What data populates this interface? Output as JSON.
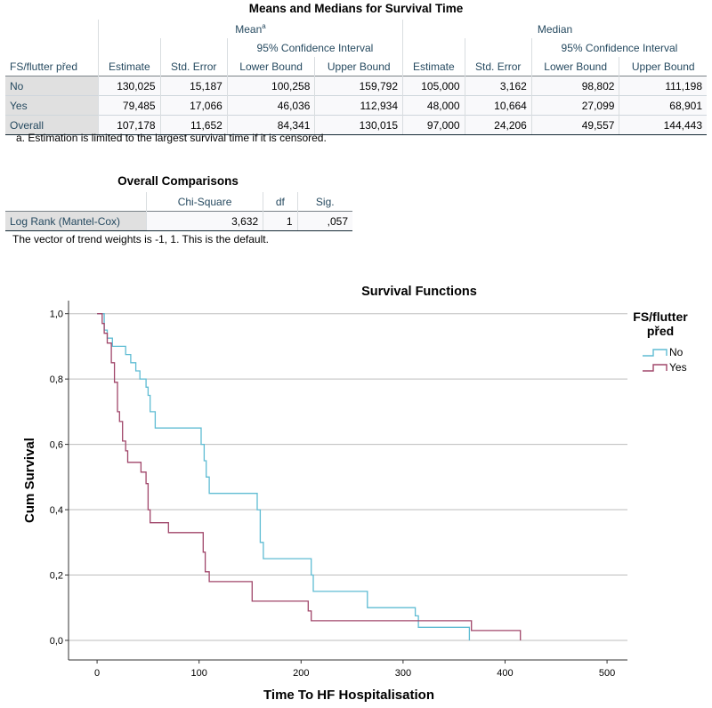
{
  "means_table": {
    "title": "Means and Medians for Survival Time",
    "mean_group": "Mean",
    "mean_sup": "a",
    "median_group": "Median",
    "ci_group": "95% Confidence Interval",
    "row_header": "FS/flutter před",
    "columns": [
      "Estimate",
      "Std. Error",
      "Lower Bound",
      "Upper Bound",
      "Estimate",
      "Std. Error",
      "Lower Bound",
      "Upper Bound"
    ],
    "rows": [
      {
        "label": "No",
        "values": [
          "130,025",
          "15,187",
          "100,258",
          "159,792",
          "105,000",
          "3,162",
          "98,802",
          "111,198"
        ]
      },
      {
        "label": "Yes",
        "values": [
          "79,485",
          "17,066",
          "46,036",
          "112,934",
          "48,000",
          "10,664",
          "27,099",
          "68,901"
        ]
      },
      {
        "label": "Overall",
        "values": [
          "107,178",
          "11,652",
          "84,341",
          "130,015",
          "97,000",
          "24,206",
          "49,557",
          "144,443"
        ]
      }
    ],
    "footnote": "a. Estimation is limited to the largest survival time if it is censored."
  },
  "comparisons_table": {
    "title": "Overall Comparisons",
    "columns": [
      "Chi-Square",
      "df",
      "Sig."
    ],
    "rows": [
      {
        "label": "Log Rank (Mantel-Cox)",
        "values": [
          "3,632",
          "1",
          ",057"
        ]
      }
    ],
    "footnote": "The vector of trend weights is -1, 1. This is the default."
  },
  "chart_data": {
    "type": "line",
    "step": true,
    "title": "Survival Functions",
    "xlabel": "Time To HF Hospitalisation",
    "ylabel": "Cum Survival",
    "xlim": [
      -28,
      520
    ],
    "ylim": [
      -0.06,
      1.04
    ],
    "x_ticks": [
      0,
      100,
      200,
      300,
      400,
      500
    ],
    "y_ticks": [
      0.0,
      0.2,
      0.4,
      0.6,
      0.8,
      1.0
    ],
    "x_tick_labels": [
      "0",
      "100",
      "200",
      "300",
      "400",
      "500"
    ],
    "y_tick_labels": [
      "0,0",
      "0,2",
      "0,4",
      "0,6",
      "0,8",
      "1,0"
    ],
    "grid": "horizontal",
    "legend": {
      "title_line1": "FS/flutter",
      "title_line2": "před",
      "placement": "right"
    },
    "series": [
      {
        "name": "No",
        "color": "#5fbcd3",
        "points": [
          [
            0,
            1.0
          ],
          [
            5,
            1.0
          ],
          [
            7,
            0.95
          ],
          [
            10,
            0.925
          ],
          [
            15,
            0.9
          ],
          [
            28,
            0.875
          ],
          [
            33,
            0.85
          ],
          [
            38,
            0.825
          ],
          [
            42,
            0.8
          ],
          [
            48,
            0.775
          ],
          [
            50,
            0.75
          ],
          [
            52,
            0.7
          ],
          [
            57,
            0.65
          ],
          [
            97,
            0.65
          ],
          [
            102,
            0.6
          ],
          [
            105,
            0.55
          ],
          [
            107,
            0.5
          ],
          [
            110,
            0.45
          ],
          [
            155,
            0.45
          ],
          [
            157,
            0.4
          ],
          [
            160,
            0.3
          ],
          [
            163,
            0.25
          ],
          [
            207,
            0.25
          ],
          [
            210,
            0.2
          ],
          [
            212,
            0.15
          ],
          [
            262,
            0.15
          ],
          [
            265,
            0.1
          ],
          [
            310,
            0.1
          ],
          [
            312,
            0.075
          ],
          [
            315,
            0.04
          ],
          [
            365,
            0.04
          ],
          [
            365,
            0.0
          ]
        ]
      },
      {
        "name": "Yes",
        "color": "#a0466a",
        "points": [
          [
            0,
            1.0
          ],
          [
            3,
            1.0
          ],
          [
            5,
            0.97
          ],
          [
            7,
            0.94
          ],
          [
            10,
            0.91
          ],
          [
            14,
            0.85
          ],
          [
            17,
            0.79
          ],
          [
            20,
            0.7
          ],
          [
            22,
            0.67
          ],
          [
            25,
            0.61
          ],
          [
            28,
            0.58
          ],
          [
            30,
            0.545
          ],
          [
            40,
            0.545
          ],
          [
            43,
            0.515
          ],
          [
            48,
            0.48
          ],
          [
            50,
            0.4
          ],
          [
            52,
            0.36
          ],
          [
            57,
            0.36
          ],
          [
            68,
            0.36
          ],
          [
            70,
            0.33
          ],
          [
            102,
            0.33
          ],
          [
            104,
            0.27
          ],
          [
            106,
            0.21
          ],
          [
            110,
            0.18
          ],
          [
            150,
            0.18
          ],
          [
            152,
            0.12
          ],
          [
            205,
            0.12
          ],
          [
            207,
            0.09
          ],
          [
            210,
            0.06
          ],
          [
            310,
            0.06
          ],
          [
            312,
            0.06
          ],
          [
            365,
            0.06
          ],
          [
            367,
            0.03
          ],
          [
            410,
            0.03
          ],
          [
            415,
            0.0
          ]
        ]
      }
    ]
  }
}
